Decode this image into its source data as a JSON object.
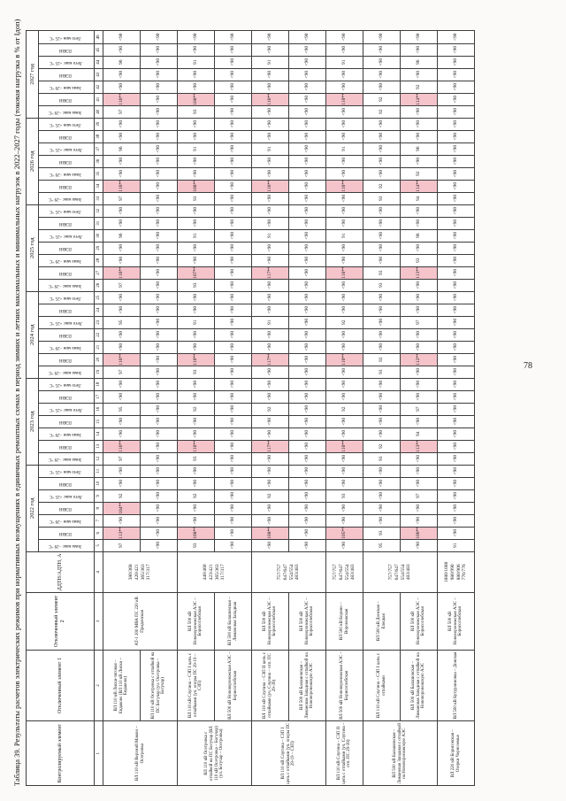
{
  "page": {
    "title": "Таблица 39.  Результаты расчетов электрических режимов при нормативных возмущениях в единичных ремонтных схемах в период зимних и летних максимальных и минимальных нагрузок в 2022–2027 годы (токовая нагрузка в % от Iдоп)",
    "page_number": "78"
  },
  "colors": {
    "highlight": "#f5c3ca",
    "border": "#3d3d3d",
    "paper": "#fbfaf8"
  },
  "table": {
    "fixed_headers": [
      "Контролируемый элемент",
      "Отключенный элемент 1",
      "Отключенный элемент 2",
      "ДДТН/АДТН, А"
    ],
    "years": [
      "2022 год",
      "2023 год",
      "2024 год",
      "2025 год",
      "2026 год",
      "2027 год"
    ],
    "season_headers": [
      "Зима макс −29 °С",
      "ПЭВН",
      "Зима мин −29 °С",
      "ПЭВН",
      "Лето макс +25 °С",
      "ПЭВН",
      "Лето мин +25 °С"
    ],
    "col_numbers": [
      "1",
      "2",
      "3",
      "4",
      "5",
      "6",
      "7",
      "8",
      "9",
      "10",
      "11",
      "12",
      "13",
      "14",
      "15",
      "16",
      "17",
      "18",
      "19",
      "20",
      "21",
      "22",
      "23",
      "24",
      "25",
      "26",
      "27",
      "28",
      "29",
      "30",
      "31",
      "32",
      "33",
      "34",
      "35",
      "36",
      "37",
      "38",
      "39",
      "40",
      "41",
      "42",
      "43",
      "44",
      "45",
      "46"
    ],
    "rows": [
      {
        "controlled": {
          "text": "ВЛ 110 кВ Верхний Мамон – Осетровка",
          "span": 2
        },
        "off1": {
          "text": "ВЛ 110 кВ Лиски-тяговая – Евдаково (ВЛ 110 кВ Лиски – Евдаково)",
          "span": 1
        },
        "off2": {
          "text": "АТ-1 200 МВА ПС 220 кВ Придонская",
          "span": 2
        },
        "current": {
          "text": "380/368\n420/421\n365/363\n317/317",
          "span": 2
        },
        "values": [
          "97",
          "113**",
          "<90",
          "104**",
          "92",
          "<90",
          "<90",
          "97",
          "116**",
          "<90",
          "<90",
          "95",
          "<90",
          "<90",
          "97",
          "116**",
          "<90",
          "<90",
          "95",
          "<90",
          "<90",
          "97",
          "116**",
          "<90",
          "<90",
          "96",
          "<90",
          "<90",
          "97",
          "116**",
          "<90",
          "<90",
          "96",
          "<90",
          "<90",
          "97",
          "116**",
          "<90",
          "<90",
          "96",
          "<90",
          "<90"
        ]
      },
      {
        "controlled": null,
        "off1": {
          "text": "ВЛ 110 кВ Осетровка с отпайкой на ПС Богучар (уч. Осетровка – Богучар)",
          "span": 1
        },
        "off2": null,
        "current": null,
        "values": [
          "<90",
          "<90",
          "<90",
          "<90",
          "<90",
          "<90",
          "<90",
          "<90",
          "<90",
          "<90",
          "<90",
          "<90",
          "<90",
          "<90",
          "<90",
          "<90",
          "<90",
          "<90",
          "<90",
          "<90",
          "<90",
          "<90",
          "<90",
          "<90",
          "<90",
          "<90",
          "<90",
          "<90",
          "<90",
          "<90",
          "<90",
          "<90",
          "<90",
          "<90",
          "<90",
          "<90",
          "<90",
          "<90",
          "<90",
          "<90",
          "<90",
          "<90"
        ]
      },
      {
        "controlled": {
          "text": "ВЛ 110 кВ Осетровка с отпайкой на ПС Богучар (ВЛ 110 кВ Осетровка – Богучар) (уч. Богучар – Осетровка)",
          "span": 2
        },
        "off1": {
          "text": "ВЛ 110 кВ Слугина – СЗП I цепь с отпайками (уч. опоры ПС 29-19 – СЗП)",
          "span": 1
        },
        "off2": {
          "text": "ВЛ 500 кВ Нововоронежская АЭС – Борисоглебская",
          "span": 1
        },
        "current": {
          "text": "440/460\n423/421\n365/363\n317/317",
          "span": 2
        },
        "values": [
          "93",
          "108**",
          "<90",
          "<90",
          "92",
          "<90",
          "<90",
          "93",
          "110**",
          "<90",
          "<90",
          "92",
          "<90",
          "<90",
          "93",
          "110**",
          "<90",
          "<90",
          "91",
          "<90",
          "<90",
          "93",
          "107**",
          "<90",
          "<90",
          "91",
          "<90",
          "<90",
          "93",
          "108**",
          "<90",
          "<90",
          "91",
          "<90",
          "<90",
          "93",
          "108**",
          "<90",
          "<90",
          "91",
          "<90",
          "<90"
        ]
      },
      {
        "controlled": null,
        "off1": {
          "text": "ВЛ 500 кВ Нововоронежская АЭС – Борисоглебская",
          "span": 1
        },
        "off2": {
          "text": "ВЛ 500 кВ Балашовская – Лимановая Западная",
          "span": 1
        },
        "current": null,
        "values": [
          "<90",
          "<90",
          "<90",
          "<90",
          "<90",
          "<90",
          "<90",
          "<90",
          "<90",
          "<90",
          "<90",
          "<90",
          "<90",
          "<90",
          "<90",
          "<90",
          "<90",
          "<90",
          "<90",
          "<90",
          "<90",
          "<90",
          "<90",
          "<90",
          "<90",
          "<90",
          "<90",
          "<90",
          "<90",
          "<90",
          "<90",
          "<90",
          "<90",
          "<90",
          "<90",
          "<90",
          "<90",
          "<90",
          "<90",
          "<90",
          "<90",
          "<90"
        ]
      },
      {
        "controlled": {
          "text": "ВЛ 110 кВ Слугина – СЗП I цепь с отпайками (уч. опоры ПС 29-19 – СЗП)",
          "span": 2
        },
        "off1": {
          "text": "ВЛ 110 кВ Слугина – СЗП II цепь с отпайками (уч. Слугина – отп. ПС 29-39)",
          "span": 1
        },
        "off2": {
          "text": "ВЛ 500 кВ Нововоронежская АЭС – Борисоглебская",
          "span": 1
        },
        "current": {
          "text": "757/757\n647/647\n554/554\n483/483",
          "span": 2
        },
        "values": [
          "<90",
          "108**",
          "<90",
          "<90",
          "92",
          "<90",
          "<90",
          "<90",
          "117**",
          "<90",
          "<90",
          "92",
          "<90",
          "<90",
          "<90",
          "117**",
          "<90",
          "<90",
          "91",
          "<90",
          "<90",
          "<90",
          "117**",
          "<90",
          "<90",
          "91",
          "<90",
          "<90",
          "<90",
          "116**",
          "<90",
          "<90",
          "91",
          "<90",
          "<90",
          "<90",
          "116**",
          "<90",
          "<90",
          "91",
          "<90",
          "<90"
        ]
      },
      {
        "controlled": null,
        "off1": {
          "text": "ВЛ 500 кВ Балашовская – Лимановая Западная с отпайкой на Нововоронежскую АЭС",
          "span": 1
        },
        "off2": {
          "text": "ВЛ 500 кВ Нововоронежская АЭС – Борисоглебская",
          "span": 1
        },
        "current": null,
        "values": [
          "<90",
          "<90",
          "<90",
          "<90",
          "<90",
          "<90",
          "<90",
          "<90",
          "<90",
          "<90",
          "<90",
          "<90",
          "<90",
          "<90",
          "<90",
          "<90",
          "<90",
          "<90",
          "<90",
          "<90",
          "<90",
          "<90",
          "<90",
          "<90",
          "<90",
          "<90",
          "<90",
          "<90",
          "<90",
          "<90",
          "<90",
          "<90",
          "<90",
          "<90",
          "<90",
          "<90",
          "<90",
          "<90",
          "<90",
          "<90",
          "<90",
          "<90"
        ]
      },
      {
        "controlled": {
          "text": "ВЛ 110 кВ Слугина – СЗП II цепь с отпайками (уч. Слугина – отп. ПС 29-39)",
          "span": 1
        },
        "off1": {
          "text": "ВЛ 500 кВ Нововоронежская АЭС – Борисоглебская",
          "span": 1
        },
        "off2": {
          "text": "ВЛ 500 кВ Борино – Воронежская",
          "span": 1
        },
        "current": {
          "text": "757/757\n647/647\n554/554\n483/483",
          "span": 1
        },
        "values": [
          "<90",
          "105**",
          "<90",
          "<90",
          "93",
          "<90",
          "<90",
          "<90",
          "110**",
          "<90",
          "<90",
          "92",
          "<90",
          "<90",
          "<90",
          "110**",
          "<90",
          "<90",
          "92",
          "<90",
          "<90",
          "<90",
          "110**",
          "<90",
          "<90",
          "91",
          "<90",
          "<90",
          "<90",
          "110**",
          "<90",
          "<90",
          "91",
          "<90",
          "<90",
          "<90",
          "110**",
          "<90",
          "<90",
          "91",
          "<90",
          "<90"
        ]
      },
      {
        "controlled": {
          "text": "ВЛ 500 кВ Балашовская – Лимановая Западная с отпайкой на Нововоронежскую АЭС",
          "span": 2
        },
        "off1": {
          "text": "ВЛ 110 кВ Слугина – СЗП I цепь с отпайками",
          "span": 1
        },
        "off2": {
          "text": "ВЛ 500 кВ Донская – Елецкая",
          "span": 1
        },
        "current": {
          "text": "757/757\n647/647\n554/554\n483/483",
          "span": 2
        },
        "values": [
          "95",
          "93",
          "<90",
          "<90",
          "<90",
          "<90",
          "<90",
          "93",
          "92",
          "<90",
          "<90",
          "<90",
          "<90",
          "<90",
          "93",
          "92",
          "<90",
          "<90",
          "<90",
          "<90",
          "<90",
          "93",
          "93",
          "<90",
          "<90",
          "<90",
          "<90",
          "<90",
          "93",
          "92",
          "<90",
          "<90",
          "<90",
          "<90",
          "<90",
          "92",
          "92",
          "<90",
          "<90",
          "<90",
          "<90",
          "<90"
        ]
      },
      {
        "controlled": null,
        "off1": {
          "text": "ВЛ 500 кВ Балашовская – Лимановая Западная с отпайкой на Нововоронежскую АЭС",
          "span": 1
        },
        "off2": {
          "text": "ВЛ 500 кВ Нововоронежская АЭС – Борисоглебская",
          "span": 1
        },
        "current": null,
        "values": [
          "<90",
          "106**",
          "<90",
          "<90",
          "97",
          "<90",
          "<90",
          "<90",
          "113**",
          "94",
          "<90",
          "97",
          "<90",
          "<90",
          "<90",
          "112**",
          "<90",
          "<90",
          "97",
          "<90",
          "<90",
          "<90",
          "113**",
          "93",
          "<90",
          "96",
          "<90",
          "<90",
          "94",
          "114**",
          "92",
          "<90",
          "96",
          "<90",
          "<90",
          "<90",
          "114**",
          "92",
          "<90",
          "96",
          "<90",
          "<90"
        ]
      },
      {
        "controlled": {
          "text": "ВЛ 220 кВ Борисовская – Озерки Черноземья",
          "span": 1
        },
        "off1": {
          "text": "ВЛ 500 кВ Бутурлиновка – Донская",
          "span": 1
        },
        "off2": {
          "text": "ВЛ 500 кВ Нововоронежская АЭС – Борисоглебская",
          "span": 1
        },
        "current": {
          "text": "1080/1080\n980/990\n880/906\n776/776",
          "span": 1
        },
        "values": [
          "91",
          "<90",
          "<90",
          "<90",
          "<90",
          "<90",
          "<90",
          "<90",
          "<90",
          "<90",
          "<90",
          "<90",
          "<90",
          "<90",
          "<90",
          "<90",
          "<90",
          "<90",
          "<90",
          "<90",
          "<90",
          "<90",
          "<90",
          "<90",
          "<90",
          "<90",
          "<90",
          "<90",
          "<90",
          "<90",
          "<90",
          "<90",
          "<90",
          "<90",
          "<90",
          "<90",
          "<90",
          "<90",
          "<90",
          "<90",
          "<90",
          "<90"
        ]
      }
    ]
  }
}
